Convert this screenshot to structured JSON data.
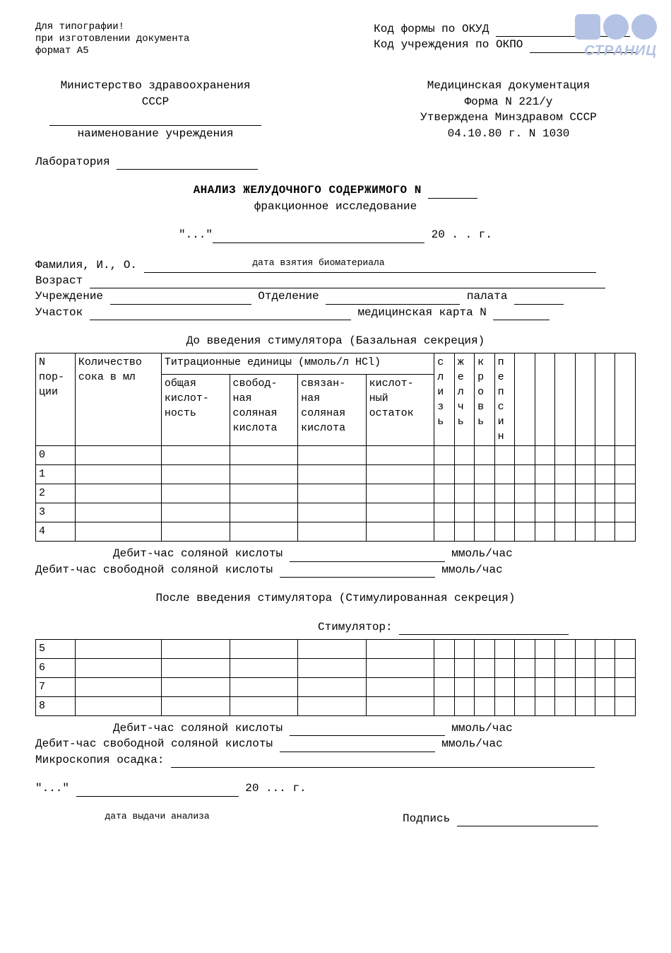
{
  "typo": {
    "l1": "Для типографии!",
    "l2": "при изготовлении документа",
    "l3": "формат А5"
  },
  "codes": {
    "okud": "Код формы по ОКУД",
    "okpo": "Код учреждения по ОКПО"
  },
  "logo_text": "СТРАНИЦ",
  "left_org": {
    "line1": "Министерство здравоохранения",
    "line2": "СССР",
    "sub": "наименование учреждения"
  },
  "right_doc": {
    "line1": "Медицинская документация",
    "line2": "Форма N 221/у",
    "line3": "Утверждена Минздравом СССР",
    "line4": "04.10.80 г. N 1030"
  },
  "lab": "Лаборатория",
  "title": "АНАЛИЗ ЖЕЛУДОЧНОГО СОДЕРЖИМОГО N",
  "subtitle": "фракционное исследование",
  "date_q": "\"...\"",
  "date_year": "20 . . г.",
  "date_sub": "дата взятия биоматериала",
  "fields": {
    "fio": "Фамилия, И., О.",
    "age": "Возраст",
    "inst": "Учреждение",
    "dept": "Отделение",
    "ward": "палата",
    "area": "Участок",
    "card": "медицинская карта N"
  },
  "section1": "До введения стимулятора (Базальная секреция)",
  "table": {
    "c1": "N пор- ции",
    "c2": "Количество сока в мл",
    "titr": "Титрационные единицы (ммоль/л HCl)",
    "t1": "общая кислот- ность",
    "t2": "свобод- ная соляная кислота",
    "t3": "связан- ная соляная кислота",
    "t4": "кислот- ный остаток",
    "v1": "слизь",
    "v2": "желчь",
    "v3": "кровь",
    "v4": "пепсин",
    "rows1": [
      "0",
      "1",
      "2",
      "3",
      "4"
    ],
    "rows2": [
      "5",
      "6",
      "7",
      "8"
    ]
  },
  "debit1": "Дебит-час соляной кислоты",
  "debit2": "Дебит-час свободной соляной кислоты",
  "unit": "ммоль/час",
  "section2": "После введения стимулятора (Стимулированная секреция)",
  "stimulator": "Стимулятор:",
  "microscopy": "Микроскопия осадка:",
  "date2_q": "\"...\"",
  "date2_year": "20 ... г.",
  "date2_sub": "дата выдачи анализа",
  "signature": "Подпись"
}
